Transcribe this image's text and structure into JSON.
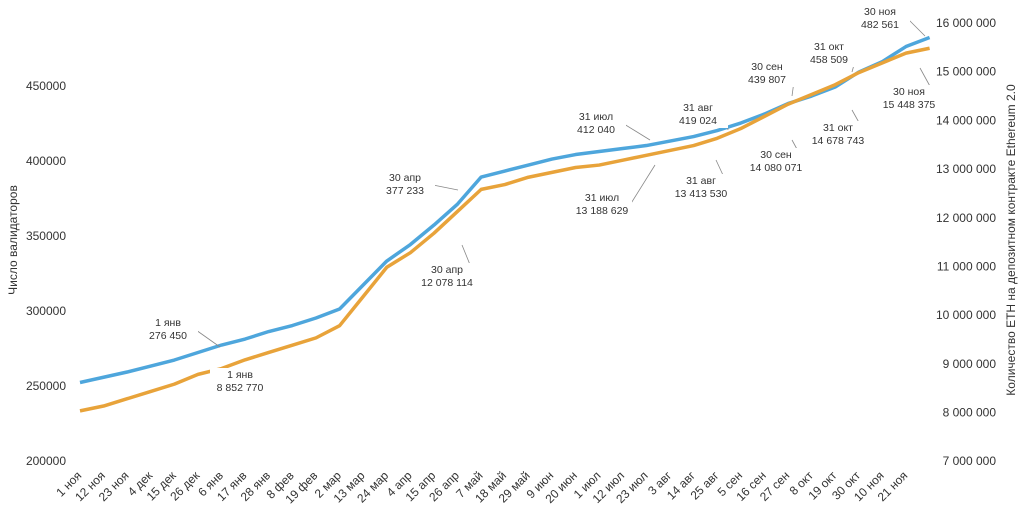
{
  "chart_data": {
    "type": "line",
    "y_axis_label": "Число валидаторов",
    "y2_axis_label": "Количество ETH на депозитном контракте Ethereum 2.0",
    "categories": [
      "1 ноя",
      "12 ноя",
      "23 ноя",
      "4 дек",
      "15 дек",
      "26 дек",
      "6 янв",
      "17 янв",
      "28 янв",
      "8 фев",
      "19 фев",
      "2 мар",
      "13 мар",
      "24 мар",
      "4 апр",
      "15 апр",
      "26 апр",
      "7 май",
      "18 май",
      "29 май",
      "9 июн",
      "20 июн",
      "1 июл",
      "12 июл",
      "23 июл",
      "3 авг",
      "14 авг",
      "25 авг",
      "5 сен",
      "16 сен",
      "27 сен",
      "8 окт",
      "19 окт",
      "30 окт",
      "10 ноя",
      "21 ноя",
      null
    ],
    "series": [
      {
        "name": "Число валидаторов",
        "color": "#4ea6dc",
        "values": [
          253000,
          256500,
          260000,
          264000,
          268000,
          273000,
          278000,
          282000,
          287000,
          291000,
          296000,
          302000,
          318000,
          334000,
          345000,
          358000,
          372000,
          390000,
          394000,
          398000,
          402000,
          405000,
          407000,
          409000,
          411000,
          414000,
          417000,
          421000,
          426000,
          432000,
          439000,
          444000,
          450000,
          460000,
          467000,
          477000,
          483000
        ]
      },
      {
        "name": "Количество ETH",
        "color": "#e8a33a",
        "axis": "y2",
        "values": [
          8050000,
          8150000,
          8300000,
          8450000,
          8600000,
          8800000,
          8920000,
          9100000,
          9250000,
          9400000,
          9550000,
          9800000,
          10400000,
          11000000,
          11300000,
          11700000,
          12150000,
          12600000,
          12700000,
          12850000,
          12950000,
          13050000,
          13100000,
          13200000,
          13300000,
          13400000,
          13500000,
          13650000,
          13850000,
          14100000,
          14350000,
          14550000,
          14750000,
          15000000,
          15200000,
          15400000,
          15500000
        ]
      }
    ],
    "ylim": [
      200000,
      494700
    ],
    "yticks": [
      200000,
      250000,
      300000,
      350000,
      400000,
      450000
    ],
    "y2lim": [
      7000000,
      16080000
    ],
    "y2ticks": [
      {
        "value": 7000000,
        "label": "7 000 000"
      },
      {
        "value": 8000000,
        "label": "8 000 000"
      },
      {
        "value": 9000000,
        "label": "9 000 000"
      },
      {
        "value": 10000000,
        "label": "10 000 000"
      },
      {
        "value": 11000000,
        "label": "11 000 000"
      },
      {
        "value": 12000000,
        "label": "12 000 000"
      },
      {
        "value": 13000000,
        "label": "13 000 000"
      },
      {
        "value": 14000000,
        "label": "14 000 000"
      },
      {
        "value": 15000000,
        "label": "15 000 000"
      },
      {
        "value": 16000000,
        "label": "16 000 000"
      }
    ],
    "annotations": [
      [
        "1 янв",
        "276 450"
      ],
      [
        "30 апр",
        "377 233"
      ],
      [
        "31 июл",
        "412 040"
      ],
      [
        "31 авг",
        "419 024"
      ],
      [
        "30 сен",
        "439 807"
      ],
      [
        "31 окт",
        "458 509"
      ],
      [
        "30 ноя",
        "482 561"
      ],
      [
        "1 янв",
        "8 852 770"
      ],
      [
        "30 апр",
        "12 078 114"
      ],
      [
        "31 июл",
        "13 188 629"
      ],
      [
        "31 авг",
        "13 413 530"
      ],
      [
        "30 сен",
        "14 080 071"
      ],
      [
        "31 окт",
        "14 678 743"
      ],
      [
        "30 ноя",
        "15 448 375"
      ]
    ]
  }
}
